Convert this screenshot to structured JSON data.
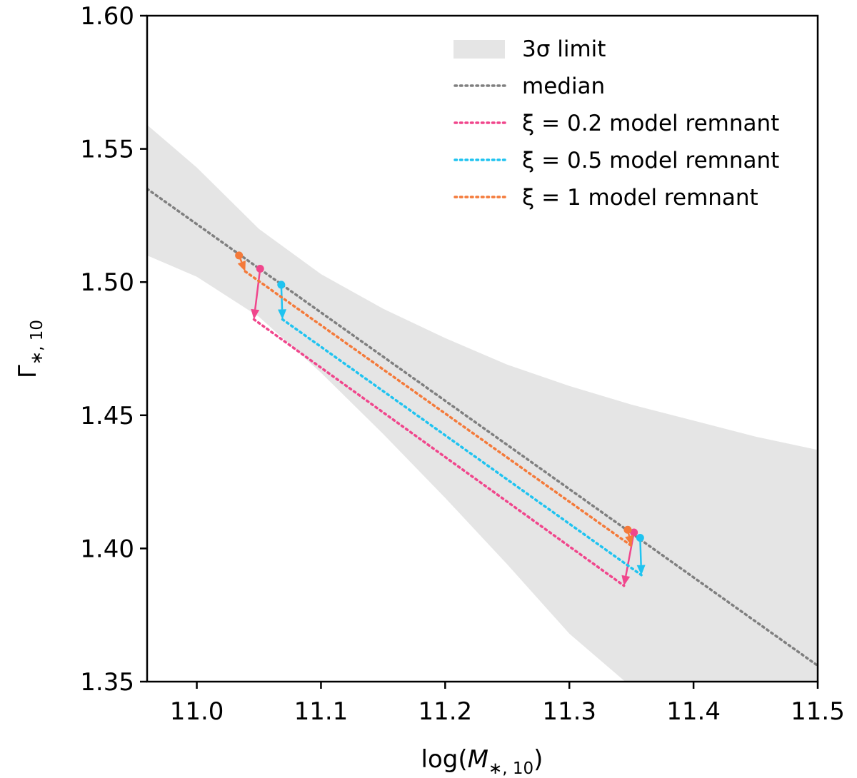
{
  "chart_data": {
    "type": "line",
    "xlabel": "log(M*,10)",
    "ylabel": "Γ*,10",
    "xlim": [
      10.96,
      11.5
    ],
    "ylim": [
      1.35,
      1.6
    ],
    "xticks": [
      "11.0",
      "11.1",
      "11.2",
      "11.3",
      "11.4",
      "11.5"
    ],
    "xtick_values": [
      11.0,
      11.1,
      11.2,
      11.3,
      11.4,
      11.5
    ],
    "yticks": [
      "1.35",
      "1.40",
      "1.45",
      "1.50",
      "1.55",
      "1.60"
    ],
    "ytick_values": [
      1.35,
      1.4,
      1.45,
      1.5,
      1.55,
      1.6
    ],
    "grid": false,
    "legend_position": "top-right",
    "colors": {
      "band": "#e5e5e5",
      "median": "#7f7f7f",
      "xi_0_2": "#f0468c",
      "xi_0_5": "#1fc3f0",
      "xi_1": "#f47a3a"
    },
    "band": {
      "name": "3σ limit",
      "x": [
        10.96,
        11.0,
        11.05,
        11.1,
        11.15,
        11.2,
        11.25,
        11.3,
        11.35,
        11.4,
        11.45,
        11.5
      ],
      "upper": [
        1.559,
        1.543,
        1.52,
        1.503,
        1.49,
        1.479,
        1.469,
        1.461,
        1.454,
        1.448,
        1.442,
        1.437
      ],
      "lower": [
        1.51,
        1.502,
        1.487,
        1.466,
        1.443,
        1.419,
        1.394,
        1.368,
        1.35,
        1.35,
        1.35,
        1.35
      ],
      "lower_cut_x": 11.345
    },
    "median": {
      "name": "median",
      "x": [
        10.96,
        11.5
      ],
      "y": [
        1.535,
        1.356
      ]
    },
    "series": [
      {
        "name": "ξ = 0.2 model remnant",
        "color_key": "xi_0_2",
        "start_points": [
          [
            11.051,
            1.505
          ],
          [
            11.352,
            1.406
          ]
        ],
        "end_points": [
          [
            11.046,
            1.486
          ],
          [
            11.344,
            1.386
          ]
        ]
      },
      {
        "name": "ξ = 0.5 model remnant",
        "color_key": "xi_0_5",
        "start_points": [
          [
            11.068,
            1.499
          ],
          [
            11.357,
            1.404
          ]
        ],
        "end_points": [
          [
            11.069,
            1.486
          ],
          [
            11.358,
            1.39
          ]
        ]
      },
      {
        "name": "ξ = 1 model remnant",
        "color_key": "xi_1",
        "start_points": [
          [
            11.034,
            1.51
          ],
          [
            11.347,
            1.407
          ]
        ],
        "end_points": [
          [
            11.039,
            1.504
          ],
          [
            11.35,
            1.401
          ]
        ]
      }
    ],
    "legend": [
      {
        "label": "3σ limit",
        "kind": "patch",
        "color_key": "band"
      },
      {
        "label": "median",
        "kind": "dotted",
        "color_key": "median"
      },
      {
        "label": "ξ = 0.2 model remnant",
        "kind": "dotted",
        "color_key": "xi_0_2"
      },
      {
        "label": "ξ = 0.5 model remnant",
        "kind": "dotted",
        "color_key": "xi_0_5"
      },
      {
        "label": "ξ = 1 model remnant",
        "kind": "dotted",
        "color_key": "xi_1"
      }
    ]
  }
}
